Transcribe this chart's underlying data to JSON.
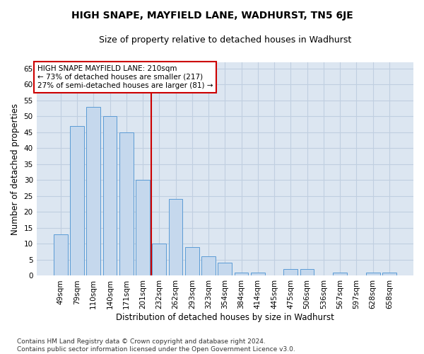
{
  "title": "HIGH SNAPE, MAYFIELD LANE, WADHURST, TN5 6JE",
  "subtitle": "Size of property relative to detached houses in Wadhurst",
  "xlabel": "Distribution of detached houses by size in Wadhurst",
  "ylabel": "Number of detached properties",
  "categories": [
    "49sqm",
    "79sqm",
    "110sqm",
    "140sqm",
    "171sqm",
    "201sqm",
    "232sqm",
    "262sqm",
    "293sqm",
    "323sqm",
    "354sqm",
    "384sqm",
    "414sqm",
    "445sqm",
    "475sqm",
    "506sqm",
    "536sqm",
    "567sqm",
    "597sqm",
    "628sqm",
    "658sqm"
  ],
  "values": [
    13,
    47,
    53,
    50,
    45,
    30,
    10,
    24,
    9,
    6,
    4,
    1,
    1,
    0,
    2,
    2,
    0,
    1,
    0,
    1,
    1
  ],
  "bar_color": "#c5d8ed",
  "bar_edge_color": "#5b9bd5",
  "vline_x": 5.5,
  "vline_color": "#cc0000",
  "annotation_text": "HIGH SNAPE MAYFIELD LANE: 210sqm\n← 73% of detached houses are smaller (217)\n27% of semi-detached houses are larger (81) →",
  "annotation_box_color": "#ffffff",
  "annotation_box_edgecolor": "#cc0000",
  "ylim": [
    0,
    67
  ],
  "yticks": [
    0,
    5,
    10,
    15,
    20,
    25,
    30,
    35,
    40,
    45,
    50,
    55,
    60,
    65
  ],
  "grid_color": "#c0cfe0",
  "background_color": "#dce6f1",
  "footer_text": "Contains HM Land Registry data © Crown copyright and database right 2024.\nContains public sector information licensed under the Open Government Licence v3.0.",
  "title_fontsize": 10,
  "subtitle_fontsize": 9,
  "xlabel_fontsize": 8.5,
  "ylabel_fontsize": 8.5,
  "tick_fontsize": 7.5,
  "annotation_fontsize": 7.5,
  "footer_fontsize": 6.5
}
